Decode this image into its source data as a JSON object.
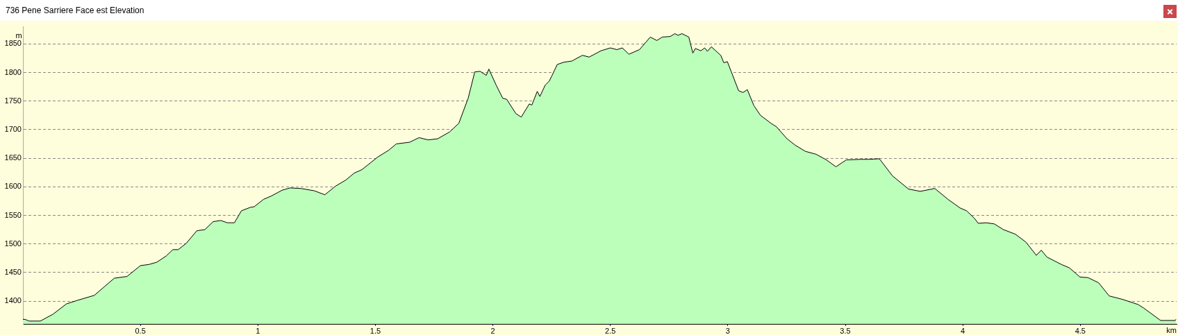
{
  "chart_data": {
    "type": "area",
    "title": "736 Pene Sarriere Face est Elevation",
    "xlabel": "km",
    "ylabel": "m",
    "x": [
      0,
      0.009,
      0.026,
      0.074,
      0.128,
      0.185,
      0.23,
      0.304,
      0.349,
      0.389,
      0.443,
      0.5,
      0.536,
      0.57,
      0.61,
      0.638,
      0.661,
      0.695,
      0.74,
      0.774,
      0.81,
      0.842,
      0.87,
      0.9,
      0.93,
      0.968,
      0.984,
      1.024,
      1.058,
      1.103,
      1.137,
      1.183,
      1.24,
      1.285,
      1.33,
      1.375,
      1.41,
      1.443,
      1.51,
      1.557,
      1.589,
      1.646,
      1.686,
      1.725,
      1.765,
      1.816,
      1.855,
      1.895,
      1.923,
      1.946,
      1.972,
      1.983,
      2.014,
      2.042,
      2.059,
      2.098,
      2.121,
      2.155,
      2.166,
      2.189,
      2.2,
      2.223,
      2.24,
      2.251,
      2.274,
      2.302,
      2.336,
      2.381,
      2.41,
      2.46,
      2.5,
      2.528,
      2.551,
      2.579,
      2.624,
      2.67,
      2.698,
      2.721,
      2.755,
      2.775,
      2.788,
      2.805,
      2.834,
      2.851,
      2.862,
      2.885,
      2.902,
      2.913,
      2.93,
      2.97,
      2.983,
      2.998,
      3.015,
      3.046,
      3.065,
      3.083,
      3.111,
      3.139,
      3.184,
      3.207,
      3.252,
      3.286,
      3.33,
      3.375,
      3.42,
      3.46,
      3.504,
      3.566,
      3.6,
      3.645,
      3.701,
      3.769,
      3.819,
      3.881,
      3.937,
      3.988,
      4.016,
      4.049,
      4.066,
      4.1,
      4.134,
      4.173,
      4.224,
      4.269,
      4.313,
      4.334,
      4.358,
      4.42,
      4.454,
      4.499,
      4.533,
      4.578,
      4.623,
      4.679,
      4.746,
      4.769,
      4.842,
      4.904,
      4.907
    ],
    "series": [
      {
        "color": "#000000",
        "values": [
          1368,
          1368,
          1365,
          1365,
          1377,
          1395,
          1401,
          1410,
          1426,
          1440,
          1443,
          1462,
          1464,
          1468,
          1479,
          1490,
          1490,
          1501,
          1523,
          1525,
          1539,
          1541,
          1537,
          1537,
          1558,
          1564,
          1565,
          1578,
          1584,
          1594,
          1598,
          1597,
          1593,
          1586,
          1601,
          1612,
          1624,
          1630,
          1652,
          1664,
          1675,
          1678,
          1686,
          1682,
          1684,
          1696,
          1711,
          1755,
          1801,
          1802,
          1795,
          1806,
          1778,
          1755,
          1753,
          1728,
          1722,
          1745,
          1743,
          1767,
          1758,
          1778,
          1785,
          1794,
          1814,
          1818,
          1820,
          1830,
          1827,
          1838,
          1843,
          1840,
          1843,
          1832,
          1840,
          1862,
          1856,
          1862,
          1863,
          1868,
          1865,
          1868,
          1862,
          1834,
          1842,
          1838,
          1843,
          1837,
          1845,
          1830,
          1817,
          1819,
          1801,
          1768,
          1765,
          1770,
          1742,
          1725,
          1711,
          1705,
          1684,
          1673,
          1662,
          1657,
          1647,
          1635,
          1647,
          1648,
          1648,
          1649,
          1619,
          1596,
          1592,
          1597,
          1578,
          1563,
          1558,
          1545,
          1536,
          1537,
          1535,
          1525,
          1517,
          1503,
          1480,
          1489,
          1477,
          1464,
          1458,
          1442,
          1441,
          1432,
          1409,
          1403,
          1394,
          1388,
          1366,
          1366,
          1368
        ]
      }
    ],
    "xlim": [
      0,
      4.91
    ],
    "xticks": [
      0.5,
      1,
      1.5,
      2,
      2.5,
      3,
      3.5,
      4,
      4.5
    ],
    "ylim": [
      1360,
      1880
    ],
    "yticks": [
      1400,
      1450,
      1500,
      1550,
      1600,
      1650,
      1700,
      1750,
      1800,
      1850
    ],
    "grid": "y",
    "legend": false
  }
}
